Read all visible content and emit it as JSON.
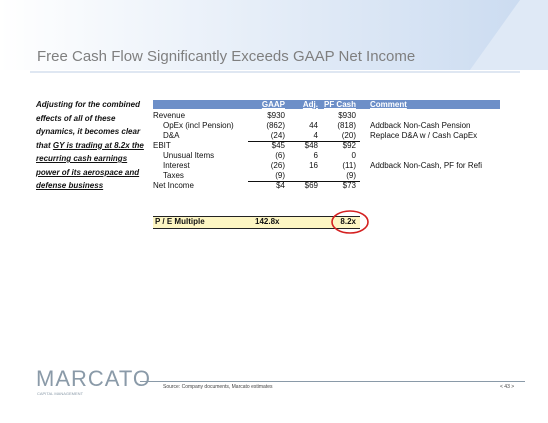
{
  "title": "Free Cash Flow Significantly Exceeds GAAP Net Income",
  "sidebar": {
    "plain": "Adjusting for the combined effects of all of these dynamics, it becomes clear that ",
    "underlined": "GY is trading at 8.2x the recurring cash earnings power of its aerospace and defense business"
  },
  "table": {
    "headers": [
      "GAAP",
      "Adj.",
      "PF Cash",
      "Comment"
    ],
    "rows": [
      [
        "Revenue",
        "$930",
        null,
        "$930",
        null
      ],
      [
        "OpEx (incl Pension)",
        "(862)",
        "44",
        "(818)",
        "Addback Non-Cash Pension"
      ],
      [
        "D&A",
        "(24)",
        "4",
        "(20)",
        "Replace D&A w / Cash CapEx"
      ],
      [
        "EBIT",
        "$45",
        "$48",
        "$92",
        null
      ],
      [
        "Unusual Items",
        "(6)",
        "6",
        "0",
        null
      ],
      [
        "Interest",
        "(26)",
        "16",
        "(11)",
        "Addback Non-Cash, PF for Refi"
      ],
      [
        "Taxes",
        "(9)",
        null,
        "(9)",
        null
      ],
      [
        "Net Income",
        "$4",
        "$69",
        "$73",
        null
      ]
    ],
    "multiple": {
      "label": "P / E Multiple",
      "gaap": "142.8x",
      "pf_cash": "8.2x"
    }
  },
  "footer": {
    "logo": "MARCATO",
    "logo_sub": "CAPITAL MANAGEMENT",
    "source": "Source: Company documents, Marcato estimates",
    "page": "< 43 >"
  }
}
